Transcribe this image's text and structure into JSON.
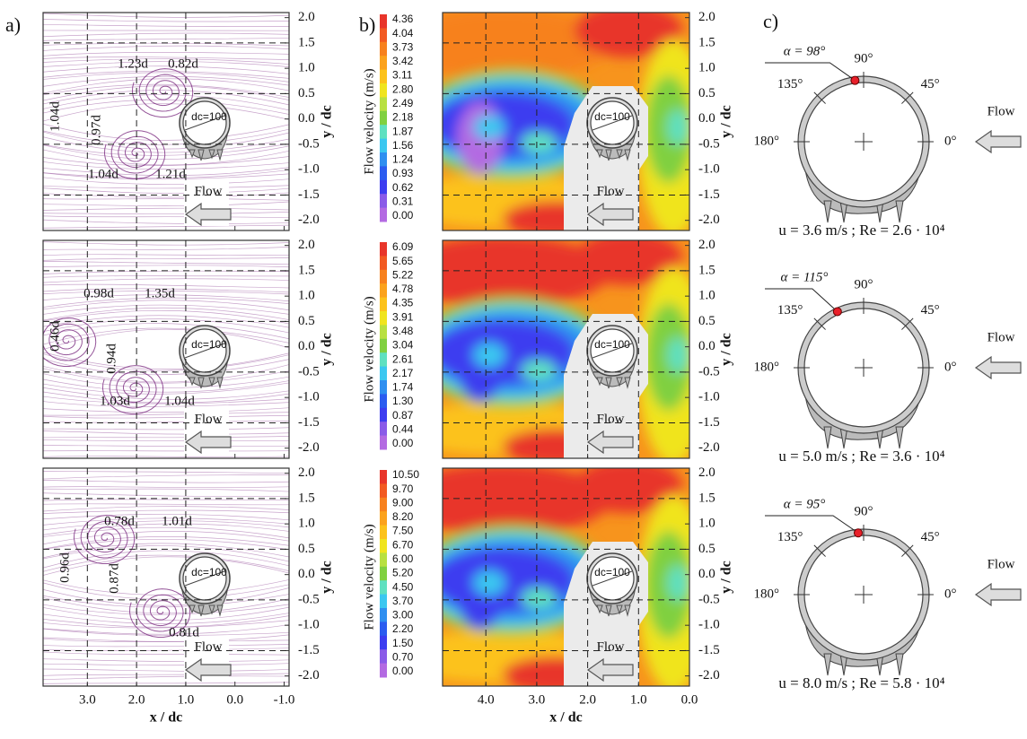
{
  "panels": {
    "a": "a)",
    "b": "b)",
    "c": "c)"
  },
  "axes": {
    "x_label": "x / dc",
    "y_label": "y / dc",
    "a_xlim": [
      3.9,
      -1.1
    ],
    "a_xticks": [
      {
        "value": 3,
        "label": "3.0"
      },
      {
        "value": 2,
        "label": "2.0"
      },
      {
        "value": 1,
        "label": "1.0"
      },
      {
        "value": 0,
        "label": "0.0"
      },
      {
        "value": -1,
        "label": "-1.0"
      }
    ],
    "b_xlim": [
      4.85,
      0
    ],
    "b_xticks": [
      {
        "value": 4,
        "label": "4.0"
      },
      {
        "value": 3,
        "label": "3.0"
      },
      {
        "value": 2,
        "label": "2.0"
      },
      {
        "value": 1,
        "label": "1.0"
      },
      {
        "value": 0,
        "label": "0.0"
      }
    ],
    "ylim": [
      -2.2,
      2.1
    ],
    "yticks": [
      {
        "value": 2,
        "label": "2.0"
      },
      1.5,
      {
        "value": 1,
        "label": "1.0"
      },
      0.5,
      {
        "value": 0,
        "label": "0.0"
      },
      -0.5,
      {
        "value": -1,
        "label": "-1.0"
      },
      -1.5,
      {
        "value": -2,
        "label": "-2.0"
      }
    ]
  },
  "rows": [
    {
      "streamlines": {
        "dims": [
          "1.23d",
          "0.82d",
          "1.04d",
          "0.97d",
          "1.04d",
          "1.21d"
        ],
        "cylinder": "dc=100",
        "flow": "Flow"
      },
      "contour": {
        "colorbar_title": "Flow velocity (m/s)",
        "levels": [
          "4.36",
          "4.04",
          "3.73",
          "3.42",
          "3.11",
          "2.80",
          "2.49",
          "2.18",
          "1.87",
          "1.56",
          "1.24",
          "0.93",
          "0.62",
          "0.31",
          "0.00"
        ],
        "cylinder": "dc=100",
        "flow": "Flow"
      },
      "sketch": {
        "alpha": {
          "value": 98,
          "label": "α = 98°"
        },
        "angles": [
          {
            "value": 90,
            "label": "90°"
          },
          {
            "value": 135,
            "label": "135°"
          },
          {
            "value": 45,
            "label": "45°"
          },
          {
            "value": 180,
            "label": "180°"
          },
          {
            "value": 0,
            "label": "0°"
          }
        ],
        "flow": "Flow",
        "caption": "u = 3.6 m/s ; Re = 2.6 · 10⁴"
      }
    },
    {
      "streamlines": {
        "dims": [
          "0.98d",
          "1.35d",
          "0.46d",
          "0.94d",
          "1.03d",
          "1.04d"
        ],
        "cylinder": "dc=100",
        "flow": "Flow"
      },
      "contour": {
        "colorbar_title": "Flow velocity (m/s)",
        "levels": [
          "6.09",
          "5.65",
          "5.22",
          "4.78",
          "4.35",
          "3.91",
          "3.48",
          "3.04",
          "2.61",
          "2.17",
          "1.74",
          "1.30",
          "0.87",
          "0.44",
          "0.00"
        ],
        "cylinder": "dc=100",
        "flow": "Flow"
      },
      "sketch": {
        "alpha": {
          "value": 115,
          "label": "α = 115°"
        },
        "angles": [
          {
            "value": 90,
            "label": "90°"
          },
          {
            "value": 135,
            "label": "135°"
          },
          {
            "value": 45,
            "label": "45°"
          },
          {
            "value": 180,
            "label": "180°"
          },
          {
            "value": 0,
            "label": "0°"
          }
        ],
        "flow": "Flow",
        "caption": "u = 5.0 m/s ; Re = 3.6 · 10⁴"
      }
    },
    {
      "streamlines": {
        "dims": [
          "0.78d",
          "1.01d",
          "0.96d",
          "0.87d",
          "0.81d"
        ],
        "cylinder": "dc=100",
        "flow": "Flow"
      },
      "contour": {
        "colorbar_title": "Flow velocity (m/s)",
        "levels": [
          "10.50",
          "9.70",
          "9.00",
          "8.20",
          "7.50",
          "6.70",
          "6.00",
          "5.20",
          "4.50",
          "3.70",
          "3.00",
          "2.20",
          "1.50",
          "0.70",
          "0.00"
        ],
        "cylinder": "dc=100",
        "flow": "Flow"
      },
      "sketch": {
        "alpha": {
          "value": 95,
          "label": "α = 95°"
        },
        "angles": [
          {
            "value": 90,
            "label": "90°"
          },
          {
            "value": 135,
            "label": "135°"
          },
          {
            "value": 45,
            "label": "45°"
          },
          {
            "value": 180,
            "label": "180°"
          },
          {
            "value": 0,
            "label": "0°"
          }
        ],
        "flow": "Flow",
        "caption": "u = 8.0 m/s ; Re = 5.8 · 10⁴"
      }
    }
  ]
}
